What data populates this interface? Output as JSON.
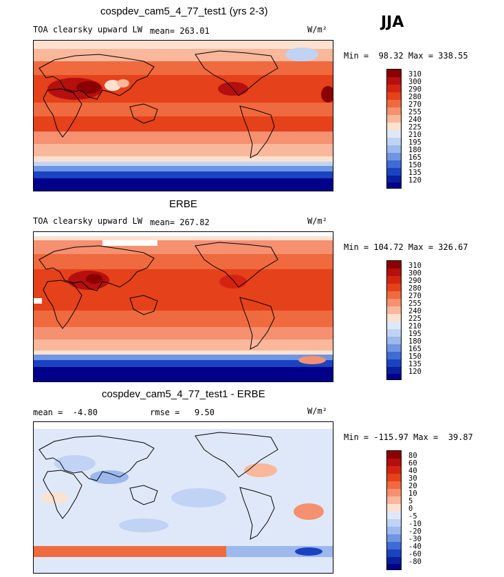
{
  "season": "JJA",
  "panels": [
    {
      "title": "cospdev_cam5_4_77_test1 (yrs 2-3)",
      "var_label": "TOA clearsky upward LW",
      "mean_text": "mean= 263.01",
      "rmse_text": "",
      "units": "W/m²",
      "minmax": "Min =  98.32 Max = 338.55",
      "levels": [
        "310",
        "300",
        "290",
        "280",
        "270",
        "255",
        "240",
        "225",
        "210",
        "195",
        "180",
        "165",
        "150",
        "135",
        "120"
      ],
      "colors": [
        "#8b0000",
        "#b50f0f",
        "#d42411",
        "#e5411a",
        "#ef6a3e",
        "#f59070",
        "#f9b79b",
        "#fde1d0",
        "#dfe8f8",
        "#c0d3f4",
        "#9cb8ed",
        "#6f95e3",
        "#3f6bd5",
        "#1a43c2",
        "#0a1f9e",
        "#00008a"
      ]
    },
    {
      "title": "ERBE",
      "var_label": "TOA clearsky upward LW",
      "mean_text": "mean= 267.82",
      "rmse_text": "",
      "units": "W/m²",
      "minmax": "Min = 104.72 Max = 326.67",
      "levels": [
        "310",
        "300",
        "290",
        "280",
        "270",
        "255",
        "240",
        "225",
        "210",
        "195",
        "180",
        "165",
        "150",
        "135",
        "120"
      ],
      "colors": [
        "#8b0000",
        "#b50f0f",
        "#d42411",
        "#e5411a",
        "#ef6a3e",
        "#f59070",
        "#f9b79b",
        "#fde1d0",
        "#dfe8f8",
        "#c0d3f4",
        "#9cb8ed",
        "#6f95e3",
        "#3f6bd5",
        "#1a43c2",
        "#0a1f9e",
        "#00008a"
      ]
    },
    {
      "title": "cospdev_cam5_4_77_test1 - ERBE",
      "var_label": "",
      "mean_text": "mean =  -4.80",
      "rmse_text": "rmse =   9.50",
      "units": "W/m²",
      "minmax": "Min = -115.97 Max =  39.87",
      "levels": [
        "80",
        "60",
        "40",
        "30",
        "20",
        "10",
        "5",
        "0",
        "-5",
        "-10",
        "-20",
        "-30",
        "-40",
        "-60",
        "-80"
      ],
      "colors": [
        "#8b0000",
        "#b50f0f",
        "#d42411",
        "#e5411a",
        "#ef6a3e",
        "#f59070",
        "#f9b79b",
        "#fde1d0",
        "#dfe8f8",
        "#c0d3f4",
        "#9cb8ed",
        "#6f95e3",
        "#3f6bd5",
        "#1a43c2",
        "#0a1f9e",
        "#00008a"
      ]
    }
  ],
  "chart_data": [
    {
      "type": "heatmap",
      "title": "cospdev_cam5_4_77_test1 (yrs 2-3)",
      "variable": "TOA clearsky upward LW",
      "units": "W/m²",
      "mean": 263.01,
      "min": 98.32,
      "max": 338.55,
      "contour_levels": [
        120,
        135,
        150,
        165,
        180,
        195,
        210,
        225,
        240,
        255,
        270,
        280,
        290,
        300,
        310
      ]
    },
    {
      "type": "heatmap",
      "title": "ERBE",
      "variable": "TOA clearsky upward LW",
      "units": "W/m²",
      "mean": 267.82,
      "min": 104.72,
      "max": 326.67,
      "contour_levels": [
        120,
        135,
        150,
        165,
        180,
        195,
        210,
        225,
        240,
        255,
        270,
        280,
        290,
        300,
        310
      ]
    },
    {
      "type": "heatmap",
      "title": "cospdev_cam5_4_77_test1 - ERBE",
      "units": "W/m²",
      "mean": -4.8,
      "rmse": 9.5,
      "min": -115.97,
      "max": 39.87,
      "contour_levels": [
        -80,
        -60,
        -40,
        -30,
        -20,
        -10,
        -5,
        0,
        5,
        10,
        20,
        30,
        40,
        60,
        80
      ]
    }
  ]
}
